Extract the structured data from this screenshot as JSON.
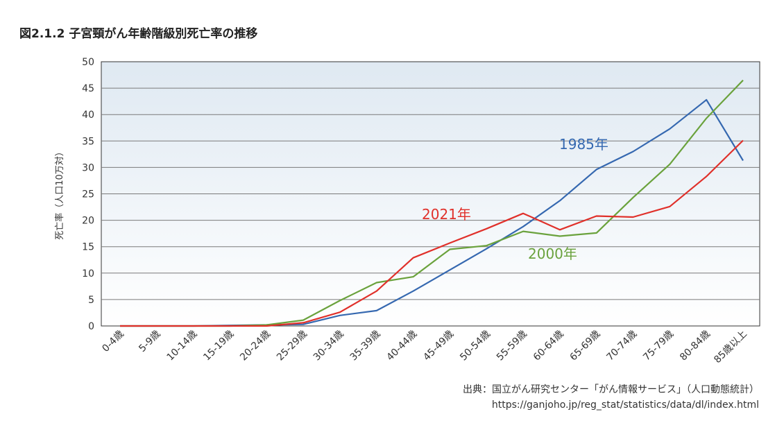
{
  "figure": {
    "title": "図2.1.2  子宮頸がん年齢階級別死亡率の推移"
  },
  "chart_data": {
    "type": "line",
    "title": "",
    "xlabel": "",
    "ylabel": "死亡率（人口10万対）",
    "ylim": [
      0,
      50
    ],
    "y_ticks": [
      0,
      5,
      10,
      15,
      20,
      25,
      30,
      35,
      40,
      45,
      50
    ],
    "grid": true,
    "categories": [
      "0-4歳",
      "5-9歳",
      "10-14歳",
      "15-19歳",
      "20-24歳",
      "25-29歳",
      "30-34歳",
      "35-39歳",
      "40-44歳",
      "45-49歳",
      "50-54歳",
      "55-59歳",
      "60-64歳",
      "65-69歳",
      "70-74歳",
      "75-79歳",
      "80-84歳",
      "85歳以上"
    ],
    "series": [
      {
        "name": "1985年",
        "color": "#3568b0",
        "values": [
          0,
          0,
          0,
          0.1,
          0.2,
          0.3,
          2.0,
          2.9,
          6.6,
          10.6,
          14.6,
          18.8,
          23.7,
          29.6,
          33.0,
          37.3,
          42.8,
          31.3
        ]
      },
      {
        "name": "2000年",
        "color": "#6aa23c",
        "values": [
          0,
          0,
          0,
          0,
          0.2,
          1.1,
          4.8,
          8.2,
          9.3,
          14.5,
          15.2,
          17.9,
          17.0,
          17.6,
          24.3,
          30.6,
          39.3,
          46.5
        ]
      },
      {
        "name": "2021年",
        "color": "#e0302a",
        "values": [
          0,
          0,
          0,
          0,
          0,
          0.6,
          2.6,
          6.6,
          12.9,
          15.7,
          18.4,
          21.3,
          18.2,
          20.8,
          20.6,
          22.6,
          28.3,
          35.1
        ]
      }
    ]
  },
  "source": {
    "line1": "出典：国立がん研究センター「がん情報サービス」（人口動態統計）",
    "line2": "https://ganjoho.jp/reg_stat/statistics/data/dl/index.html"
  }
}
